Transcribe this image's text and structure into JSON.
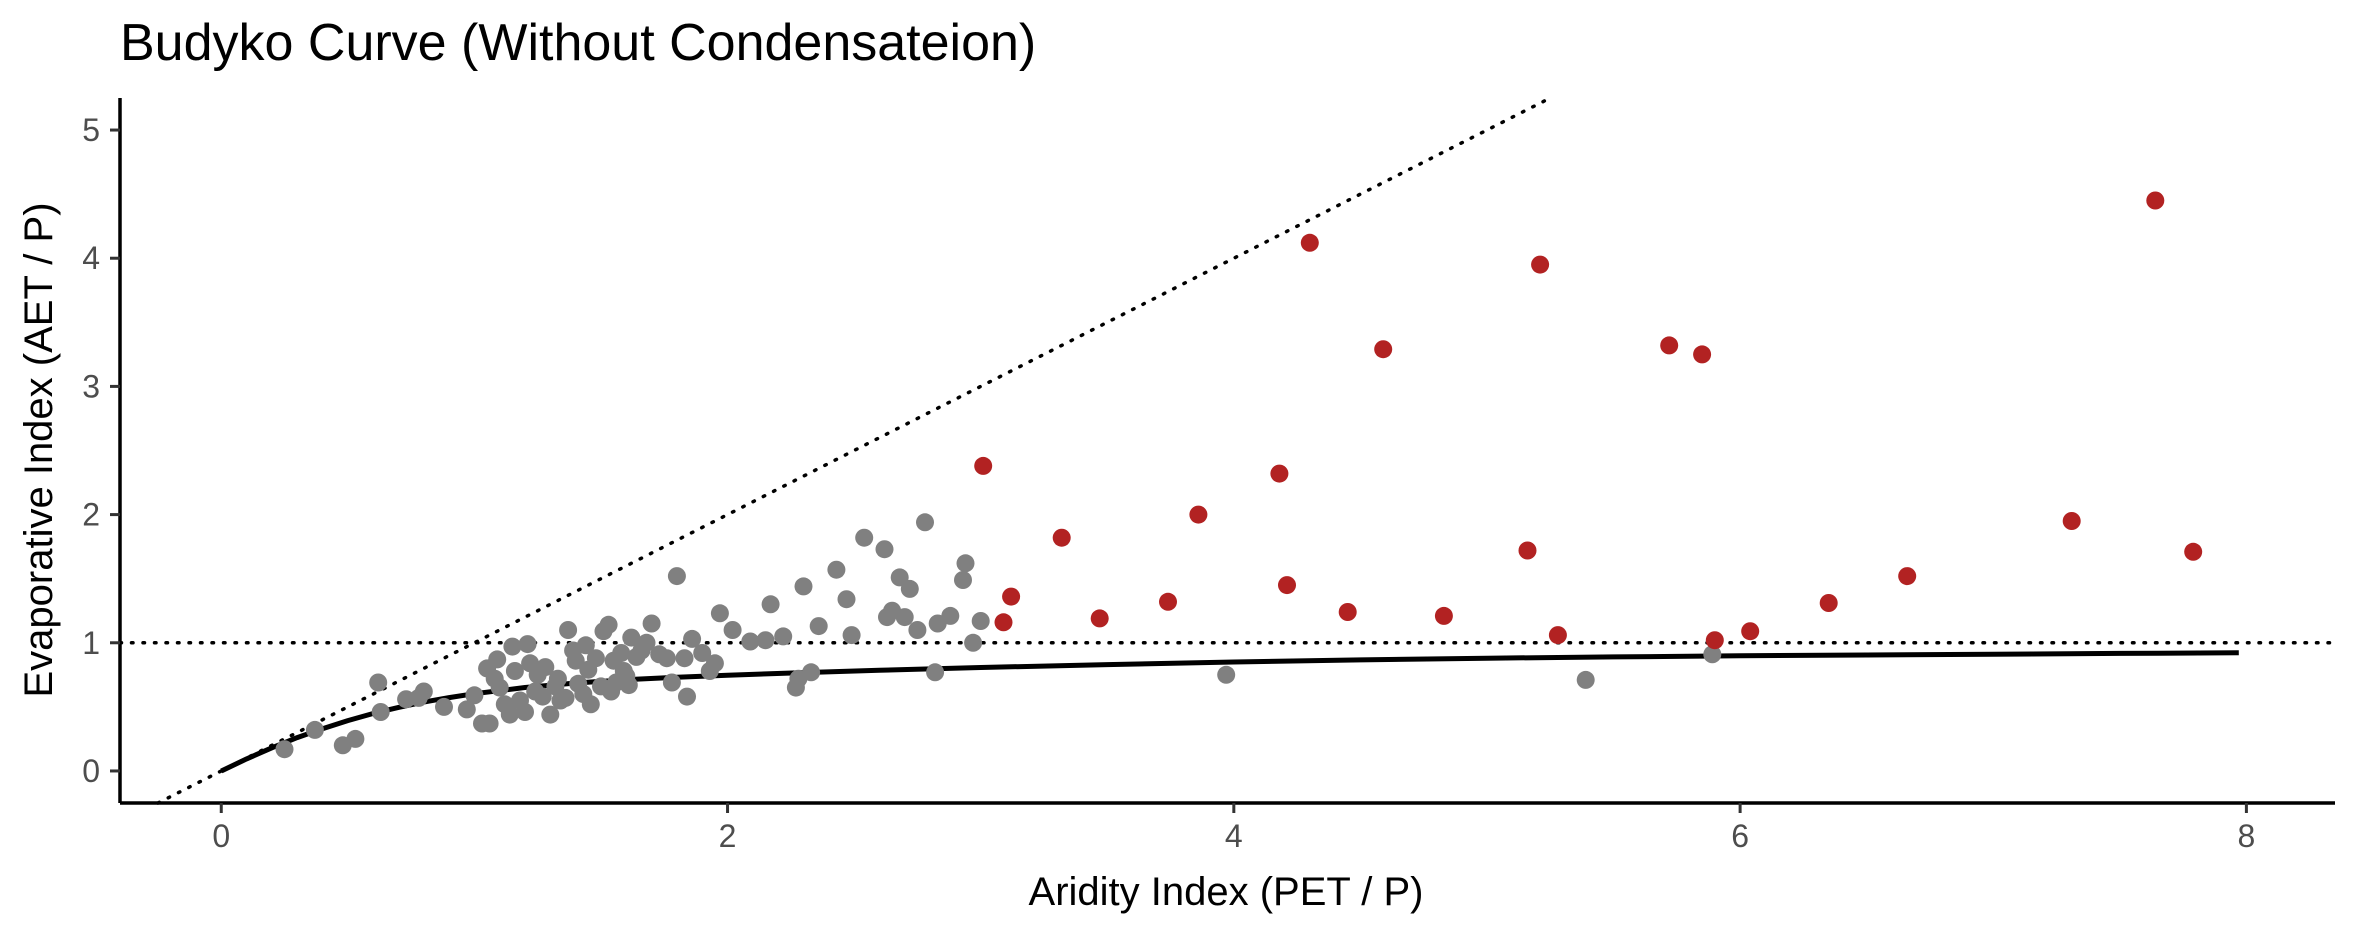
{
  "chart_data": {
    "type": "scatter",
    "title": "Budyko Curve (Without Condensateion)",
    "xlabel": "Aridity Index (PET / P)",
    "ylabel": "Evaporative Index (AET / P)",
    "xlim": [
      -0.4,
      8.35
    ],
    "ylim": [
      -0.25,
      5.25
    ],
    "xticks": [
      "0",
      "2",
      "4",
      "6",
      "8"
    ],
    "yticks": [
      "0",
      "1",
      "2",
      "3",
      "4",
      "5"
    ],
    "xtick_values": [
      0,
      2,
      4,
      6,
      8
    ],
    "ytick_values": [
      0,
      1,
      2,
      3,
      4,
      5
    ],
    "grid": false,
    "legend": "none",
    "colors": {
      "within_limit": "#808080",
      "exceeds_limit": "#b22222",
      "curve": "#000000",
      "reference": "#000000"
    },
    "reference_lines": [
      {
        "type": "energy-limit",
        "equation": "y = x",
        "style": "dotted",
        "x": [
          -0.25,
          5.25
        ]
      },
      {
        "type": "water-limit",
        "equation": "y = 1",
        "style": "dotted"
      }
    ],
    "curve": {
      "name": "Budyko",
      "style": "solid",
      "x": [
        0,
        0.1,
        0.2,
        0.3,
        0.4,
        0.5,
        0.6,
        0.7,
        0.8,
        0.9,
        1.0,
        1.2,
        1.4,
        1.6,
        1.8,
        2.0,
        2.3,
        2.6,
        3.0,
        3.5,
        4.0,
        4.5,
        5.0,
        5.5,
        6.0,
        6.5,
        7.0,
        7.5,
        7.97
      ],
      "y": [
        0,
        0.094,
        0.181,
        0.26,
        0.33,
        0.393,
        0.448,
        0.496,
        0.537,
        0.572,
        0.603,
        0.651,
        0.686,
        0.712,
        0.731,
        0.747,
        0.767,
        0.785,
        0.807,
        0.83,
        0.85,
        0.866,
        0.88,
        0.89,
        0.898,
        0.905,
        0.911,
        0.917,
        0.922
      ]
    },
    "series": [
      {
        "group": "within_limit",
        "points": [
          [
            0.25,
            0.17
          ],
          [
            0.37,
            0.32
          ],
          [
            0.48,
            0.2
          ],
          [
            0.53,
            0.25
          ],
          [
            0.62,
            0.69
          ],
          [
            0.63,
            0.46
          ],
          [
            0.73,
            0.56
          ],
          [
            0.78,
            0.57
          ],
          [
            0.8,
            0.62
          ],
          [
            0.88,
            0.5
          ],
          [
            0.97,
            0.48
          ],
          [
            1.0,
            0.59
          ],
          [
            1.03,
            0.37
          ],
          [
            1.05,
            0.8
          ],
          [
            1.06,
            0.37
          ],
          [
            1.08,
            0.72
          ],
          [
            1.09,
            0.87
          ],
          [
            1.1,
            0.65
          ],
          [
            1.12,
            0.52
          ],
          [
            1.14,
            0.44
          ],
          [
            1.15,
            0.97
          ],
          [
            1.16,
            0.78
          ],
          [
            1.18,
            0.55
          ],
          [
            1.2,
            0.46
          ],
          [
            1.21,
            0.99
          ],
          [
            1.22,
            0.84
          ],
          [
            1.24,
            0.62
          ],
          [
            1.25,
            0.75
          ],
          [
            1.27,
            0.58
          ],
          [
            1.28,
            0.81
          ],
          [
            1.3,
            0.44
          ],
          [
            1.32,
            0.66
          ],
          [
            1.33,
            0.72
          ],
          [
            1.34,
            0.55
          ],
          [
            1.36,
            0.57
          ],
          [
            1.37,
            1.1
          ],
          [
            1.39,
            0.94
          ],
          [
            1.4,
            0.86
          ],
          [
            1.41,
            0.68
          ],
          [
            1.43,
            0.6
          ],
          [
            1.44,
            0.98
          ],
          [
            1.45,
            0.79
          ],
          [
            1.46,
            0.52
          ],
          [
            1.48,
            0.88
          ],
          [
            1.5,
            0.66
          ],
          [
            1.51,
            1.09
          ],
          [
            1.53,
            1.14
          ],
          [
            1.54,
            0.62
          ],
          [
            1.55,
            0.86
          ],
          [
            1.56,
            0.69
          ],
          [
            1.58,
            0.92
          ],
          [
            1.59,
            0.78
          ],
          [
            1.6,
            0.74
          ],
          [
            1.61,
            0.67
          ],
          [
            1.62,
            1.04
          ],
          [
            1.64,
            0.89
          ],
          [
            1.66,
            0.94
          ],
          [
            1.68,
            1.0
          ],
          [
            1.7,
            1.15
          ],
          [
            1.73,
            0.91
          ],
          [
            1.76,
            0.88
          ],
          [
            1.78,
            0.69
          ],
          [
            1.8,
            1.52
          ],
          [
            1.83,
            0.88
          ],
          [
            1.84,
            0.58
          ],
          [
            1.86,
            1.03
          ],
          [
            1.9,
            0.92
          ],
          [
            1.93,
            0.78
          ],
          [
            1.95,
            0.84
          ],
          [
            1.97,
            1.23
          ],
          [
            2.02,
            1.1
          ],
          [
            2.09,
            1.01
          ],
          [
            2.15,
            1.02
          ],
          [
            2.17,
            1.3
          ],
          [
            2.22,
            1.05
          ],
          [
            2.27,
            0.65
          ],
          [
            2.28,
            0.72
          ],
          [
            2.3,
            1.44
          ],
          [
            2.33,
            0.77
          ],
          [
            2.36,
            1.13
          ],
          [
            2.43,
            1.57
          ],
          [
            2.47,
            1.34
          ],
          [
            2.49,
            1.06
          ],
          [
            2.54,
            1.82
          ],
          [
            2.62,
            1.73
          ],
          [
            2.63,
            1.2
          ],
          [
            2.65,
            1.25
          ],
          [
            2.68,
            1.51
          ],
          [
            2.7,
            1.2
          ],
          [
            2.72,
            1.42
          ],
          [
            2.75,
            1.1
          ],
          [
            2.78,
            1.94
          ],
          [
            2.82,
            0.77
          ],
          [
            2.83,
            1.15
          ],
          [
            2.88,
            1.21
          ],
          [
            2.93,
            1.49
          ],
          [
            2.94,
            1.62
          ],
          [
            2.97,
            1.0
          ],
          [
            3.0,
            1.17
          ],
          [
            3.97,
            0.75
          ],
          [
            5.39,
            0.71
          ],
          [
            5.89,
            0.91
          ]
        ]
      },
      {
        "group": "exceeds_limit",
        "points": [
          [
            3.01,
            2.38
          ],
          [
            3.09,
            1.16
          ],
          [
            3.12,
            1.36
          ],
          [
            3.32,
            1.82
          ],
          [
            3.47,
            1.19
          ],
          [
            3.74,
            1.32
          ],
          [
            3.86,
            2.0
          ],
          [
            4.18,
            2.32
          ],
          [
            4.21,
            1.45
          ],
          [
            4.3,
            4.12
          ],
          [
            4.45,
            1.24
          ],
          [
            4.59,
            3.29
          ],
          [
            4.83,
            1.21
          ],
          [
            5.16,
            1.72
          ],
          [
            5.21,
            3.95
          ],
          [
            5.28,
            1.06
          ],
          [
            5.72,
            3.32
          ],
          [
            5.85,
            3.25
          ],
          [
            5.9,
            1.02
          ],
          [
            6.04,
            1.09
          ],
          [
            6.35,
            1.31
          ],
          [
            6.66,
            1.52
          ],
          [
            7.31,
            1.95
          ],
          [
            7.64,
            4.45
          ],
          [
            7.79,
            1.71
          ]
        ]
      }
    ]
  }
}
